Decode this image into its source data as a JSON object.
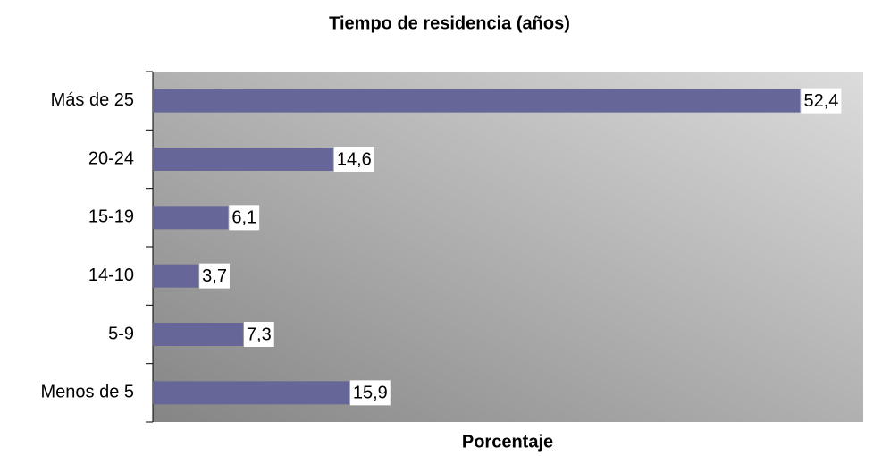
{
  "chart_data": {
    "type": "hbar",
    "title": "Tiempo de residencia (años)",
    "x_label": "Porcentaje",
    "categories": [
      "Más de 25",
      "20-24",
      "15-19",
      "14-10",
      "5-9",
      "Menos de 5"
    ],
    "values": [
      52.4,
      14.6,
      6.1,
      3.7,
      7.3,
      15.9
    ],
    "value_labels": [
      "52,4",
      "14,6",
      "6,1",
      "3,7",
      "7,3",
      "15,9"
    ],
    "color": "#666699",
    "xlim": [
      0,
      57.5
    ]
  }
}
